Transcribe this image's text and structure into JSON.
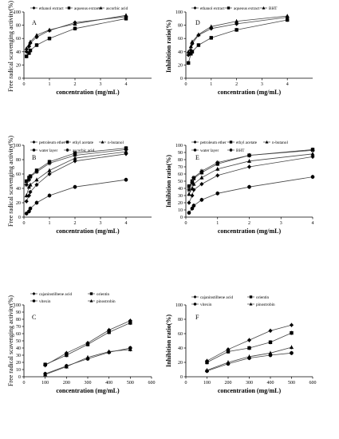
{
  "chart_data": [
    {
      "type": "line",
      "panel": "A",
      "xlabel": "concentration (mg/mL)",
      "ylabel": "Free radical scavenging activity(%)",
      "xlim": [
        0,
        5
      ],
      "ylim": [
        0,
        100
      ],
      "xticks": [
        "0",
        "1",
        "2",
        "3",
        "4"
      ],
      "yticks": [
        "0",
        "20",
        "40",
        "60",
        "80",
        "100"
      ],
      "legend_position": "top",
      "series": [
        {
          "name": "ethanol extract",
          "marker": "diamond",
          "x": [
            0.1,
            0.2,
            0.25,
            0.5,
            1,
            2,
            4
          ],
          "y": [
            40,
            48,
            53,
            62,
            72,
            84,
            93
          ]
        },
        {
          "name": "aqueous extract",
          "marker": "square",
          "x": [
            0.1,
            0.2,
            0.25,
            0.5,
            1,
            2,
            4
          ],
          "y": [
            33,
            38,
            42,
            50,
            60,
            75,
            90
          ]
        },
        {
          "name": "ascorbic acid",
          "marker": "triangle",
          "x": [
            0.1,
            0.2,
            0.25,
            0.5,
            1,
            2,
            4
          ],
          "y": [
            45,
            50,
            55,
            65,
            73,
            82,
            95
          ]
        }
      ]
    },
    {
      "type": "line",
      "panel": "D",
      "xlabel": "concentration (mg/mL)",
      "ylabel": "Inhibition ratio(%)",
      "xlim": [
        0,
        5
      ],
      "ylim": [
        0,
        100
      ],
      "xticks": [
        "0",
        "1",
        "2",
        "3",
        "4"
      ],
      "yticks": [
        "0",
        "20",
        "40",
        "60",
        "80",
        "100"
      ],
      "legend_position": "top",
      "series": [
        {
          "name": "ethanol extract",
          "marker": "diamond",
          "x": [
            0.1,
            0.2,
            0.25,
            0.5,
            1,
            2,
            4
          ],
          "y": [
            35,
            42,
            52,
            65,
            75,
            82,
            92
          ]
        },
        {
          "name": "aqueous extract",
          "marker": "square",
          "x": [
            0.1,
            0.2,
            0.25,
            0.5,
            1,
            2,
            4
          ],
          "y": [
            23,
            37,
            40,
            50,
            61,
            73,
            88
          ]
        },
        {
          "name": "BHT",
          "marker": "triangle",
          "x": [
            0.1,
            0.2,
            0.25,
            0.5,
            1,
            2,
            4
          ],
          "y": [
            40,
            48,
            55,
            66,
            78,
            86,
            94
          ]
        }
      ]
    },
    {
      "type": "line",
      "panel": "B",
      "xlabel": "concentration (mg/mL)",
      "ylabel": "Free radical scavenging activity(%)",
      "xlim": [
        0,
        5
      ],
      "ylim": [
        0,
        100
      ],
      "xticks": [
        "0",
        "1",
        "2",
        "3",
        "4"
      ],
      "yticks": [
        "0",
        "20",
        "40",
        "60",
        "80",
        "100"
      ],
      "legend_position": "top",
      "series": [
        {
          "name": "petroleum ether",
          "marker": "diamond",
          "x": [
            0.1,
            0.2,
            0.25,
            0.5,
            1,
            2,
            4
          ],
          "y": [
            22,
            30,
            35,
            45,
            60,
            78,
            88
          ]
        },
        {
          "name": "ethyl acetate",
          "marker": "square",
          "x": [
            0.1,
            0.2,
            0.25,
            0.5,
            1,
            2,
            4
          ],
          "y": [
            50,
            55,
            57,
            65,
            77,
            89,
            96
          ]
        },
        {
          "name": "n-butanol",
          "marker": "triangle",
          "x": [
            0.1,
            0.2,
            0.25,
            0.5,
            1,
            2,
            4
          ],
          "y": [
            30,
            42,
            45,
            52,
            65,
            82,
            91
          ]
        },
        {
          "name": "water layer",
          "marker": "circle",
          "x": [
            0.1,
            0.2,
            0.25,
            0.5,
            1,
            2,
            4
          ],
          "y": [
            5,
            8,
            12,
            20,
            30,
            42,
            52
          ]
        },
        {
          "name": "ascorbic acid",
          "marker": "star",
          "x": [
            0.1,
            0.2,
            0.25,
            0.5,
            1,
            2,
            4
          ],
          "y": [
            45,
            52,
            56,
            63,
            75,
            86,
            94
          ]
        }
      ]
    },
    {
      "type": "line",
      "panel": "E",
      "xlabel": "concentration (mg/mL)",
      "ylabel": "Inhibition ratio(%)",
      "xlim": [
        0,
        4
      ],
      "ylim": [
        0,
        100
      ],
      "xticks": [
        "0",
        "1",
        "2",
        "3",
        "4"
      ],
      "yticks": [
        "0",
        "10",
        "20",
        "30",
        "40",
        "50",
        "60",
        "70",
        "80",
        "90",
        "100"
      ],
      "legend_position": "top",
      "series": [
        {
          "name": "petroleum ether",
          "marker": "diamond",
          "x": [
            0.1,
            0.2,
            0.25,
            0.5,
            1,
            2,
            4
          ],
          "y": [
            20,
            30,
            38,
            46,
            58,
            70,
            84
          ]
        },
        {
          "name": "ethyl acetate",
          "marker": "square",
          "x": [
            0.1,
            0.2,
            0.25,
            0.5,
            1,
            2,
            4
          ],
          "y": [
            43,
            50,
            54,
            62,
            74,
            86,
            94
          ]
        },
        {
          "name": "n-butanol",
          "marker": "triangle",
          "x": [
            0.1,
            0.2,
            0.25,
            0.5,
            1,
            2,
            4
          ],
          "y": [
            32,
            40,
            46,
            55,
            67,
            78,
            88
          ]
        },
        {
          "name": "water layer",
          "marker": "circle",
          "x": [
            0.1,
            0.2,
            0.25,
            0.5,
            1,
            2,
            4
          ],
          "y": [
            6,
            12,
            16,
            24,
            33,
            42,
            56
          ]
        },
        {
          "name": "BHT",
          "marker": "star",
          "x": [
            0.1,
            0.2,
            0.25,
            0.5,
            1,
            2,
            4
          ],
          "y": [
            38,
            48,
            55,
            64,
            76,
            86,
            93
          ]
        }
      ]
    },
    {
      "type": "line",
      "panel": "C",
      "xlabel": "concentration (mg/mL)",
      "ylabel": "Free radical scavenging activity(%)",
      "xlim": [
        0,
        600
      ],
      "ylim": [
        0,
        100
      ],
      "xticks": [
        "0",
        "100",
        "200",
        "300",
        "400",
        "500",
        "600"
      ],
      "yticks": [
        "0",
        "10",
        "20",
        "30",
        "40",
        "50",
        "60",
        "70",
        "80",
        "90",
        "100"
      ],
      "legend_position": "top",
      "series": [
        {
          "name": "cajaninstilbene acid",
          "marker": "diamond",
          "x": [
            100,
            200,
            300,
            400,
            500
          ],
          "y": [
            16,
            33,
            47,
            65,
            78
          ]
        },
        {
          "name": "orientin",
          "marker": "square",
          "x": [
            100,
            200,
            300,
            400,
            500
          ],
          "y": [
            17,
            30,
            45,
            62,
            75
          ]
        },
        {
          "name": "vitexin",
          "marker": "circle",
          "x": [
            100,
            200,
            300,
            400,
            500
          ],
          "y": [
            4,
            15,
            25,
            34,
            40
          ]
        },
        {
          "name": "pinostrobin",
          "marker": "triangle",
          "x": [
            100,
            200,
            300,
            400,
            500
          ],
          "y": [
            3,
            14,
            27,
            35,
            38
          ]
        }
      ]
    },
    {
      "type": "line",
      "panel": "F",
      "xlabel": "concentration (mg/mL)",
      "ylabel": "Inhibition ratio(%)",
      "xlim": [
        0,
        600
      ],
      "ylim": [
        0,
        100
      ],
      "xticks": [
        "0",
        "100",
        "200",
        "300",
        "400",
        "500",
        "600"
      ],
      "yticks": [
        "0",
        "20",
        "40",
        "60",
        "80",
        "100"
      ],
      "legend_position": "top",
      "series": [
        {
          "name": "cajaninstilbene acid",
          "marker": "diamond",
          "x": [
            100,
            200,
            300,
            400,
            500
          ],
          "y": [
            22,
            38,
            51,
            64,
            72
          ]
        },
        {
          "name": "orientin",
          "marker": "square",
          "x": [
            100,
            200,
            300,
            400,
            500
          ],
          "y": [
            20,
            35,
            40,
            48,
            61
          ]
        },
        {
          "name": "vitexin",
          "marker": "circle",
          "x": [
            100,
            200,
            300,
            400,
            500
          ],
          "y": [
            8,
            18,
            26,
            30,
            33
          ]
        },
        {
          "name": "pinostrobin",
          "marker": "triangle",
          "x": [
            100,
            200,
            300,
            400,
            500
          ],
          "y": [
            9,
            20,
            28,
            33,
            41
          ]
        }
      ]
    }
  ]
}
